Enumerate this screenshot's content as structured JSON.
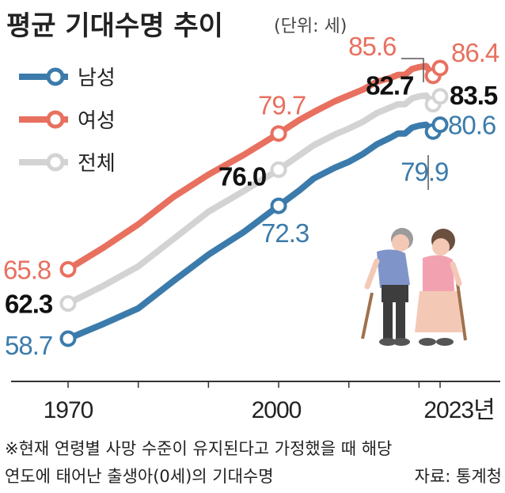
{
  "header": {
    "title": "평균 기대수명 추이",
    "unit": "(단위: 세)"
  },
  "chart_data": {
    "type": "line",
    "title": "평균 기대수명 추이",
    "unit": "(단위: 세)",
    "x_ticks": [
      "1970",
      "2000",
      "2023년"
    ],
    "xlim": [
      1970,
      2023
    ],
    "ylim": [
      55,
      90
    ],
    "grid": false,
    "legend_position": "top-left",
    "series": [
      {
        "name": "남성",
        "color": "#3b7bab",
        "x": [
          1970,
          1975,
          1980,
          1985,
          1990,
          1995,
          2000,
          2003,
          2005,
          2008,
          2010,
          2012,
          2014,
          2016,
          2017,
          2018,
          2019,
          2020,
          2021,
          2022,
          2023
        ],
        "y": [
          58.7,
          60.2,
          61.8,
          64.6,
          67.3,
          69.6,
          72.3,
          73.9,
          75.1,
          76.2,
          76.8,
          77.6,
          78.6,
          79.3,
          79.7,
          79.7,
          80.3,
          80.5,
          80.6,
          79.9,
          80.6
        ]
      },
      {
        "name": "여성",
        "color": "#e8705f",
        "x": [
          1970,
          1975,
          1980,
          1985,
          1990,
          1995,
          2000,
          2003,
          2005,
          2008,
          2010,
          2012,
          2014,
          2016,
          2017,
          2018,
          2019,
          2020,
          2021,
          2022,
          2023
        ],
        "y": [
          65.8,
          68.0,
          70.4,
          73.2,
          75.5,
          77.5,
          79.7,
          81.1,
          81.9,
          83.0,
          83.6,
          84.2,
          85.0,
          85.4,
          85.7,
          85.7,
          86.3,
          86.5,
          86.6,
          85.6,
          86.4
        ]
      },
      {
        "name": "전체",
        "color": "#d3d3d3",
        "x": [
          1970,
          1975,
          1980,
          1985,
          1990,
          1995,
          2000,
          2003,
          2005,
          2008,
          2010,
          2012,
          2014,
          2016,
          2017,
          2018,
          2019,
          2020,
          2021,
          2022,
          2023
        ],
        "y": [
          62.3,
          64.1,
          66.1,
          68.9,
          71.7,
          73.8,
          76.0,
          77.5,
          78.5,
          79.6,
          80.2,
          80.9,
          81.8,
          82.4,
          82.7,
          82.7,
          83.3,
          83.5,
          83.6,
          82.7,
          83.5
        ]
      }
    ],
    "data_labels": [
      {
        "series": "여성",
        "x": 1970,
        "y": 65.8,
        "text": "65.8"
      },
      {
        "series": "전체",
        "x": 1970,
        "y": 62.3,
        "text": "62.3"
      },
      {
        "series": "남성",
        "x": 1970,
        "y": 58.7,
        "text": "58.7"
      },
      {
        "series": "여성",
        "x": 2000,
        "y": 79.7,
        "text": "79.7"
      },
      {
        "series": "전체",
        "x": 2000,
        "y": 76.0,
        "text": "76.0"
      },
      {
        "series": "남성",
        "x": 2000,
        "y": 72.3,
        "text": "72.3"
      },
      {
        "series": "여성",
        "x": 2022,
        "y": 85.6,
        "text": "85.6"
      },
      {
        "series": "전체",
        "x": 2022,
        "y": 82.7,
        "text": "82.7"
      },
      {
        "series": "남성",
        "x": 2022,
        "y": 79.9,
        "text": "79.9"
      },
      {
        "series": "여성",
        "x": 2023,
        "y": 86.4,
        "text": "86.4"
      },
      {
        "series": "전체",
        "x": 2023,
        "y": 83.5,
        "text": "83.5"
      },
      {
        "series": "남성",
        "x": 2023,
        "y": 80.6,
        "text": "80.6"
      }
    ]
  },
  "footnote": {
    "line1": "※현재 연령별 사망 수준이 유지된다고 가정했을 때 해당",
    "line2": "연도에 태어난 출생아(0세)의 기대수명",
    "source": "자료: 통계청"
  },
  "colors": {
    "male": "#3b7bab",
    "female": "#e8705f",
    "total": "#d3d3d3"
  }
}
